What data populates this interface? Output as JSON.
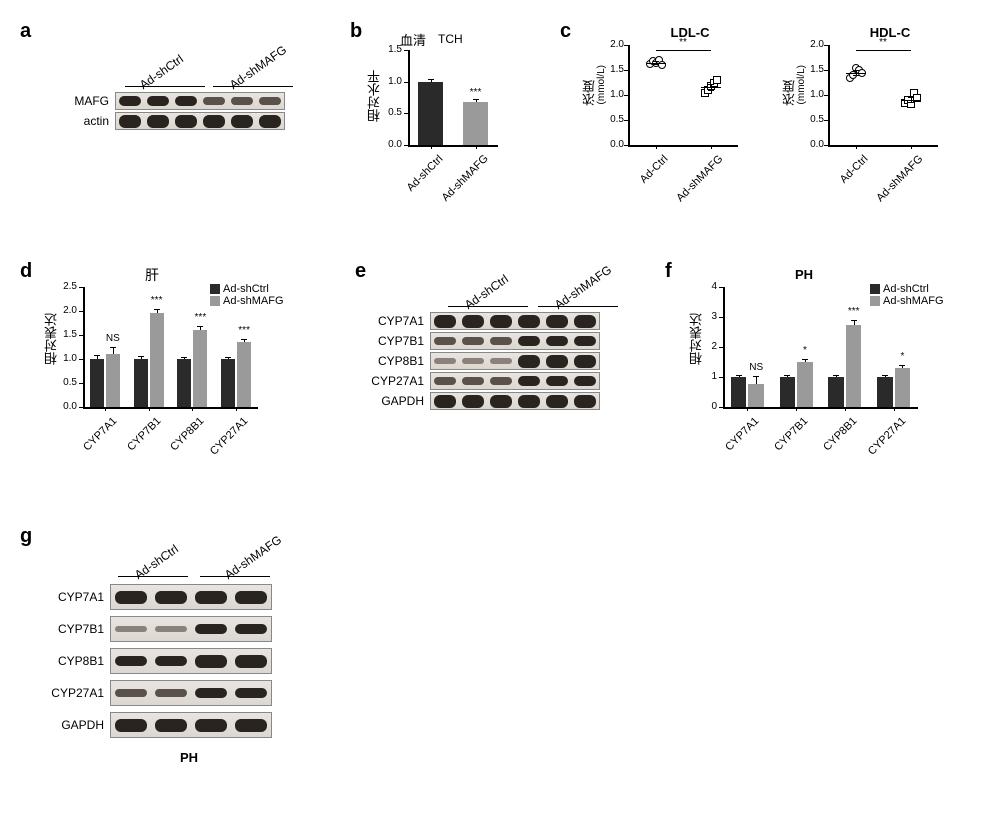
{
  "colors": {
    "bar_ctrl": "#2a2a2a",
    "bar_mafg": "#9a9a9a",
    "scatter_ctrl": "#ffffff",
    "scatter_mafg": "#ffffff"
  },
  "panels": {
    "a": {
      "label": "a",
      "groups": [
        "Ad-shCtrl",
        "Ad-shMAFG"
      ],
      "rows": [
        "MAFG",
        "actin"
      ]
    },
    "b": {
      "label": "b",
      "title_chinese": "血清",
      "title_en": "TCH",
      "ylabel": "相对水平",
      "ylim": [
        0,
        1.5
      ],
      "ytick_step": 0.5,
      "categories": [
        "Ad-shCtrl",
        "Ad-shMAFG"
      ],
      "values": [
        1.0,
        0.68
      ],
      "errors": [
        0.04,
        0.05
      ],
      "colors": [
        "#2a2a2a",
        "#9a9a9a"
      ],
      "sig": "***"
    },
    "c": {
      "label": "c",
      "ylabel": "浓度",
      "yunit": "(mmol/L)",
      "charts": [
        {
          "title": "LDL-C",
          "ylim": [
            0,
            2.0
          ],
          "ytick_step": 0.5,
          "categories": [
            "Ad-Ctrl",
            "Ad-shMAFG"
          ],
          "points": [
            [
              1.62,
              1.68,
              1.65,
              1.7,
              1.6
            ],
            [
              1.05,
              1.1,
              1.18,
              1.25,
              1.3
            ]
          ],
          "means": [
            1.65,
            1.17
          ],
          "sems": [
            0.03,
            0.06
          ],
          "markers": [
            "circle",
            "square"
          ],
          "sig": "**"
        },
        {
          "title": "HDL-C",
          "ylim": [
            0,
            2.0
          ],
          "ytick_step": 0.5,
          "categories": [
            "Ad-Ctrl",
            "Ad-shMAFG"
          ],
          "points": [
            [
              1.35,
              1.4,
              1.55,
              1.5,
              1.45
            ],
            [
              0.85,
              0.9,
              0.82,
              1.05,
              0.95
            ]
          ],
          "means": [
            1.45,
            0.91
          ],
          "sems": [
            0.05,
            0.05
          ],
          "markers": [
            "circle",
            "square"
          ],
          "sig": "**"
        }
      ]
    },
    "d": {
      "label": "d",
      "title": "肝",
      "ylabel": "相对表达",
      "ylim": [
        0,
        2.5
      ],
      "ytick_step": 0.5,
      "legend": [
        "Ad-shCtrl",
        "Ad-shMAFG"
      ],
      "legend_colors": [
        "#2a2a2a",
        "#9a9a9a"
      ],
      "categories": [
        "CYP7A1",
        "CYP7B1",
        "CYP8B1",
        "CYP27A1"
      ],
      "ctrl_values": [
        1.0,
        1.0,
        1.0,
        1.0
      ],
      "ctrl_errors": [
        0.08,
        0.06,
        0.05,
        0.05
      ],
      "mafg_values": [
        1.1,
        1.95,
        1.6,
        1.35
      ],
      "mafg_errors": [
        0.15,
        0.1,
        0.08,
        0.06
      ],
      "sigs": [
        "NS",
        "***",
        "***",
        "***"
      ]
    },
    "e": {
      "label": "e",
      "groups": [
        "Ad-shCtrl",
        "Ad-shMAFG"
      ],
      "rows": [
        "CYP7A1",
        "CYP7B1",
        "CYP8B1",
        "CYP27A1",
        "GAPDH"
      ]
    },
    "f": {
      "label": "f",
      "title": "PH",
      "ylabel": "相对表达",
      "ylim": [
        0,
        4
      ],
      "ytick_step": 1,
      "legend": [
        "Ad-shCtrl",
        "Ad-shMAFG"
      ],
      "legend_colors": [
        "#2a2a2a",
        "#9a9a9a"
      ],
      "categories": [
        "CYP7A1",
        "CYP7B1",
        "CYP8B1",
        "CYP27A1"
      ],
      "ctrl_values": [
        1.0,
        1.0,
        1.0,
        1.0
      ],
      "ctrl_errors": [
        0.08,
        0.06,
        0.06,
        0.06
      ],
      "mafg_values": [
        0.78,
        1.5,
        2.75,
        1.3
      ],
      "mafg_errors": [
        0.25,
        0.1,
        0.15,
        0.1
      ],
      "sigs": [
        "NS",
        "*",
        "***",
        "*"
      ]
    },
    "g": {
      "label": "g",
      "groups": [
        "Ad-shCtrl",
        "Ad-shMAFG"
      ],
      "rows": [
        "CYP7A1",
        "CYP7B1",
        "CYP8B1",
        "CYP27A1",
        "GAPDH"
      ],
      "bottom_label": "PH"
    }
  }
}
